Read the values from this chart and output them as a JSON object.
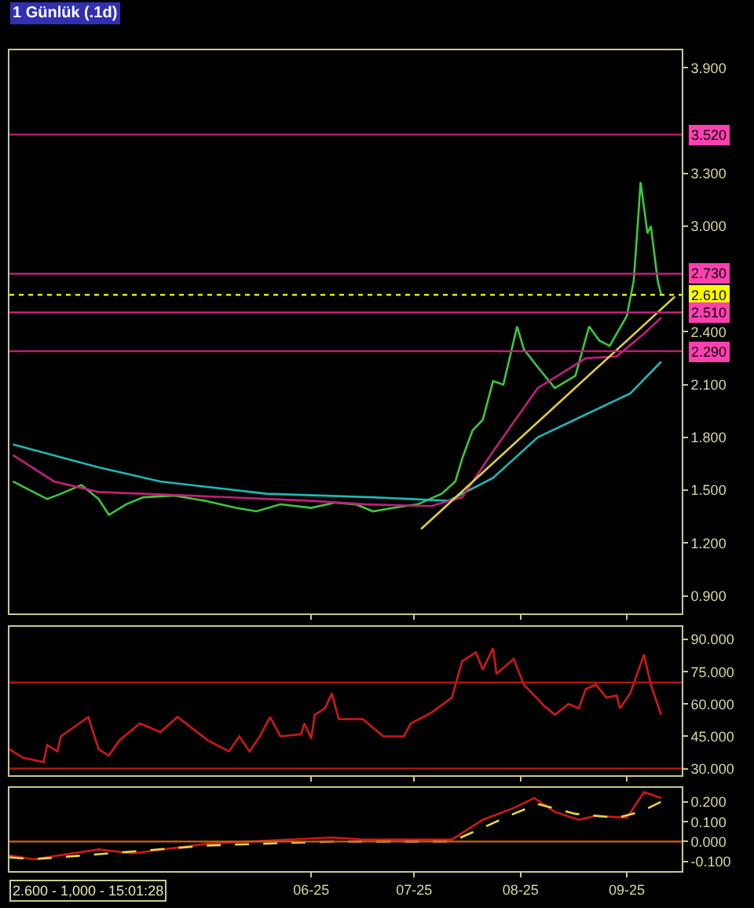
{
  "chart_data": [
    {
      "type": "line",
      "title": "1 Günlük (.1d)",
      "xlim": [
        "2025-03-05",
        "2025-09-17"
      ],
      "tick_labels": "y",
      "xticks": [
        {
          "value": "2025-06-01",
          "label": null
        },
        {
          "value": "2025-07-01",
          "label": null
        },
        {
          "value": "2025-08-01",
          "label": null
        },
        {
          "value": "2025-09-01",
          "label": null
        }
      ],
      "ylim": [
        0.8,
        4.0
      ],
      "yticks": [
        {
          "value": 0.9,
          "label": "0.900"
        },
        {
          "value": 1.2,
          "label": "1.200"
        },
        {
          "value": 1.5,
          "label": "1.500"
        },
        {
          "value": 1.8,
          "label": "1.800"
        },
        {
          "value": 2.1,
          "label": "2.100"
        },
        {
          "value": 2.4,
          "label": "2.400"
        },
        {
          "value": 3.0,
          "label": "3.000"
        },
        {
          "value": 3.3,
          "label": "3.300"
        },
        {
          "value": 3.9,
          "label": "3.900"
        }
      ],
      "grid": false,
      "series": [
        {
          "color": "#3cc83c",
          "x": [
            "2025-03-06",
            "2025-03-11",
            "2025-03-16",
            "2025-03-20",
            "2025-03-26",
            "2025-03-31",
            "2025-04-03",
            "2025-04-08",
            "2025-04-13",
            "2025-04-22",
            "2025-05-01",
            "2025-05-10",
            "2025-05-16",
            "2025-05-23",
            "2025-06-01",
            "2025-06-08",
            "2025-06-14",
            "2025-06-19",
            "2025-06-25",
            "2025-07-02",
            "2025-07-09",
            "2025-07-13",
            "2025-07-15",
            "2025-07-18",
            "2025-07-21",
            "2025-07-24",
            "2025-07-27",
            "2025-07-31",
            "2025-08-02",
            "2025-08-06",
            "2025-08-11",
            "2025-08-17",
            "2025-08-21",
            "2025-08-24",
            "2025-08-27",
            "2025-09-01",
            "2025-09-03",
            "2025-09-04",
            "2025-09-05",
            "2025-09-07",
            "2025-09-08",
            "2025-09-10",
            "2025-09-11"
          ],
          "values": [
            1.55,
            1.5,
            1.45,
            1.48,
            1.53,
            1.45,
            1.36,
            1.42,
            1.46,
            1.47,
            1.44,
            1.4,
            1.38,
            1.42,
            1.4,
            1.43,
            1.42,
            1.38,
            1.4,
            1.42,
            1.48,
            1.55,
            1.68,
            1.84,
            1.9,
            2.12,
            2.1,
            2.43,
            2.3,
            2.2,
            2.08,
            2.15,
            2.43,
            2.35,
            2.32,
            2.49,
            2.69,
            2.96,
            3.25,
            2.96,
            3.0,
            2.69,
            2.61
          ]
        },
        {
          "color": "#20b8b8",
          "x": [
            "2025-03-06",
            "2025-03-31",
            "2025-04-18",
            "2025-05-19",
            "2025-06-19",
            "2025-07-11",
            "2025-07-24",
            "2025-08-06",
            "2025-08-20",
            "2025-09-02",
            "2025-09-11"
          ],
          "values": [
            1.76,
            1.63,
            1.55,
            1.48,
            1.46,
            1.44,
            1.57,
            1.8,
            1.93,
            2.05,
            2.23
          ]
        },
        {
          "color": "#c0207a",
          "x": [
            "2025-03-06",
            "2025-03-18",
            "2025-03-31",
            "2025-04-26",
            "2025-06-01",
            "2025-06-17",
            "2025-07-06",
            "2025-07-15",
            "2025-07-24",
            "2025-08-06",
            "2025-08-20",
            "2025-08-29",
            "2025-09-06",
            "2025-09-11"
          ],
          "values": [
            1.7,
            1.55,
            1.49,
            1.47,
            1.44,
            1.42,
            1.41,
            1.46,
            1.72,
            2.08,
            2.25,
            2.26,
            2.39,
            2.48
          ]
        },
        {
          "color": "#e0d040",
          "x": [
            "2025-07-03",
            "2025-09-15"
          ],
          "values": [
            1.28,
            2.6
          ]
        }
      ],
      "ref_lines": [
        {
          "axis": "y",
          "value": 3.52,
          "label": "3.520",
          "color": "#c0207a"
        },
        {
          "axis": "y",
          "value": 2.73,
          "label": "2.730",
          "color": "#c0207a"
        },
        {
          "axis": "y",
          "value": 2.61,
          "label": "2.610",
          "color": "#ffff00",
          "line_style": "dotted"
        },
        {
          "axis": "y",
          "value": 2.51,
          "label": "2.510",
          "color": "#c0207a"
        },
        {
          "axis": "y",
          "value": 2.29,
          "label": "2.290",
          "color": "#c0207a"
        }
      ]
    },
    {
      "type": "line",
      "xlim": [
        "2025-03-05",
        "2025-09-17"
      ],
      "tick_labels": "y",
      "xticks": [
        {
          "value": "2025-06-01",
          "label": null
        },
        {
          "value": "2025-07-01",
          "label": null
        },
        {
          "value": "2025-08-01",
          "label": null
        },
        {
          "value": "2025-09-01",
          "label": null
        }
      ],
      "ylim": [
        27,
        96
      ],
      "yticks": [
        {
          "value": 30,
          "label": "30.000"
        },
        {
          "value": 45,
          "label": "45.000"
        },
        {
          "value": 60,
          "label": "60.000"
        },
        {
          "value": 75,
          "label": "75.000"
        },
        {
          "value": 90,
          "label": "90.000"
        }
      ],
      "grid": false,
      "series": [
        {
          "color": "#d01818",
          "x": [
            "2025-03-05",
            "2025-03-09",
            "2025-03-15",
            "2025-03-16",
            "2025-03-19",
            "2025-03-20",
            "2025-03-28",
            "2025-03-31",
            "2025-04-03",
            "2025-04-06",
            "2025-04-12",
            "2025-04-18",
            "2025-04-23",
            "2025-05-02",
            "2025-05-08",
            "2025-05-11",
            "2025-05-14",
            "2025-05-17",
            "2025-05-20",
            "2025-05-23",
            "2025-05-29",
            "2025-05-30",
            "2025-06-01",
            "2025-06-02",
            "2025-06-05",
            "2025-06-07",
            "2025-06-09",
            "2025-06-16",
            "2025-06-22",
            "2025-06-28",
            "2025-06-30",
            "2025-07-06",
            "2025-07-12",
            "2025-07-15",
            "2025-07-19",
            "2025-07-21",
            "2025-07-24",
            "2025-07-25",
            "2025-07-30",
            "2025-08-02",
            "2025-08-08",
            "2025-08-11",
            "2025-08-15",
            "2025-08-18",
            "2025-08-20",
            "2025-08-23",
            "2025-08-26",
            "2025-08-29",
            "2025-08-30",
            "2025-09-02",
            "2025-09-06",
            "2025-09-08",
            "2025-09-11"
          ],
          "values": [
            39,
            35,
            33,
            41,
            38,
            45,
            54,
            39,
            36,
            43,
            51,
            47,
            54,
            43,
            38,
            45,
            38,
            45,
            54,
            45,
            46,
            51,
            44,
            55,
            58,
            65,
            53,
            53,
            45,
            45,
            51,
            56,
            63,
            80,
            84,
            76,
            86,
            74,
            81,
            69,
            59,
            55,
            60,
            58,
            67,
            69,
            63,
            64,
            58,
            65,
            83,
            69,
            55
          ]
        }
      ],
      "ref_lines": [
        {
          "axis": "y",
          "value": 70,
          "color": "#b01818"
        },
        {
          "axis": "y",
          "value": 30,
          "color": "#b01818"
        }
      ]
    },
    {
      "type": "line",
      "xlim": [
        "2025-03-05",
        "2025-09-17"
      ],
      "xticks": [
        {
          "value": "2025-06-01",
          "label": "06-25"
        },
        {
          "value": "2025-07-01",
          "label": "07-25"
        },
        {
          "value": "2025-08-01",
          "label": "08-25"
        },
        {
          "value": "2025-09-01",
          "label": "09-25"
        }
      ],
      "ylim": [
        -0.15,
        0.27
      ],
      "yticks": [
        {
          "value": -0.1,
          "label": "-0.100"
        },
        {
          "value": 0,
          "label": "0.000"
        },
        {
          "value": 0.1,
          "label": "0.100"
        },
        {
          "value": 0.2,
          "label": "0.200"
        }
      ],
      "grid": false,
      "series": [
        {
          "color": "#d01818",
          "line_style": "solid",
          "x": [
            "2025-03-05",
            "2025-03-12",
            "2025-03-31",
            "2025-04-10",
            "2025-05-02",
            "2025-06-07",
            "2025-06-16",
            "2025-07-12",
            "2025-07-21",
            "2025-07-30",
            "2025-08-05",
            "2025-08-11",
            "2025-08-18",
            "2025-08-23",
            "2025-09-01",
            "2025-09-06",
            "2025-09-11"
          ],
          "values": [
            -0.07,
            -0.09,
            -0.04,
            -0.06,
            -0.01,
            0.02,
            0.01,
            0.01,
            0.11,
            0.17,
            0.22,
            0.15,
            0.11,
            0.13,
            0.12,
            0.25,
            0.22
          ]
        },
        {
          "color": "#e8d848",
          "line_style": "dashed",
          "x": [
            "2025-03-05",
            "2025-03-12",
            "2025-04-03",
            "2025-05-02",
            "2025-06-07",
            "2025-07-12",
            "2025-07-30",
            "2025-08-06",
            "2025-08-17",
            "2025-08-29",
            "2025-09-05",
            "2025-09-12"
          ],
          "values": [
            -0.08,
            -0.09,
            -0.06,
            -0.02,
            0.0,
            0.0,
            0.14,
            0.19,
            0.14,
            0.12,
            0.15,
            0.21
          ]
        }
      ],
      "ref_lines": [
        {
          "axis": "y",
          "value": 0,
          "color": "#d06010"
        }
      ],
      "annotations": [
        "2.600 - 1,000 - 15:01:28"
      ]
    }
  ]
}
